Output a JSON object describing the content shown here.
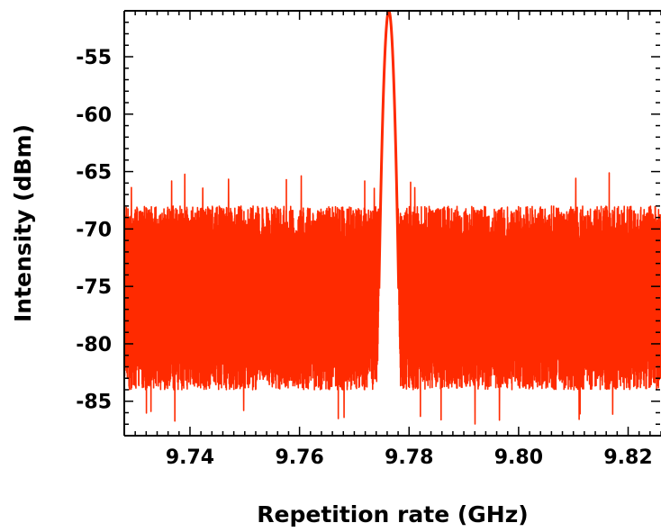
{
  "chart_data": {
    "type": "line",
    "title": "",
    "xlabel": "Repetition rate (GHz)",
    "ylabel": "Intensity (dBm)",
    "xlim": [
      9.728,
      9.826
    ],
    "ylim": [
      -88,
      -51
    ],
    "x_ticks": [
      9.74,
      9.76,
      9.78,
      9.8,
      9.82
    ],
    "x_tick_labels": [
      "9.74",
      "9.76",
      "9.78",
      "9.80",
      "9.82"
    ],
    "y_ticks": [
      -55,
      -60,
      -65,
      -70,
      -75,
      -80,
      -85
    ],
    "y_tick_labels": [
      "-55",
      "-60",
      "-65",
      "-70",
      "-75",
      "-80",
      "-85"
    ],
    "grid": false,
    "legend": "none",
    "series": [
      {
        "color": "#ff2a00",
        "peak": {
          "x": 9.7763,
          "y": -51
        },
        "noise_floor": {
          "typical_min": -84,
          "typical_max": -68,
          "extreme_min": -87,
          "extreme_max": -65
        }
      }
    ]
  }
}
